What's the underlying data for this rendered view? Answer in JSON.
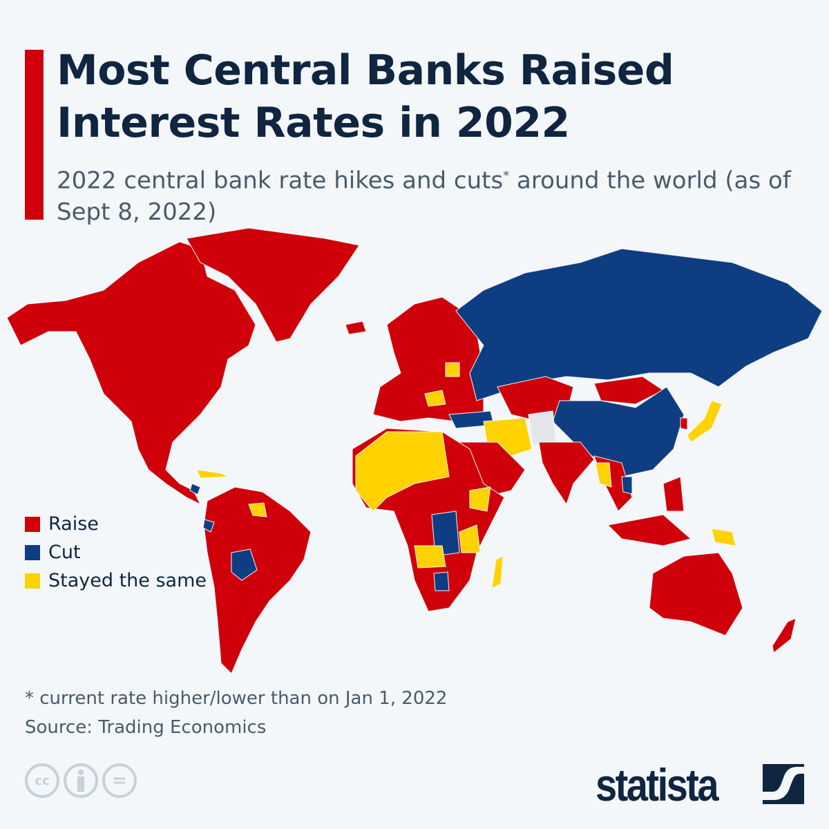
{
  "header": {
    "title": "Most Central Banks Raised Interest Rates in 2022",
    "subtitle_main": "2022 central bank rate hikes and cuts",
    "subtitle_star": "*",
    "subtitle_rest": " around the world (as of Sept 8, 2022)"
  },
  "colors": {
    "raise": "#d0000a",
    "cut": "#0f3d82",
    "same": "#ffd200",
    "no_data": "#e3e6e9",
    "accent_bar": "#d0000a"
  },
  "legend": [
    {
      "label": "Raise",
      "color": "#d0000a"
    },
    {
      "label": "Cut",
      "color": "#0f3d82"
    },
    {
      "label": "Stayed the same",
      "color": "#ffd200"
    }
  ],
  "footer": {
    "footnote": "* current rate higher/lower than on Jan 1, 2022",
    "source": "Source: Trading Economics",
    "license_icons": [
      "creative-commons-icon",
      "attribution-icon",
      "no-derivatives-icon"
    ],
    "cc_text": "cc",
    "eq_text": "=",
    "brand": "statista"
  }
}
